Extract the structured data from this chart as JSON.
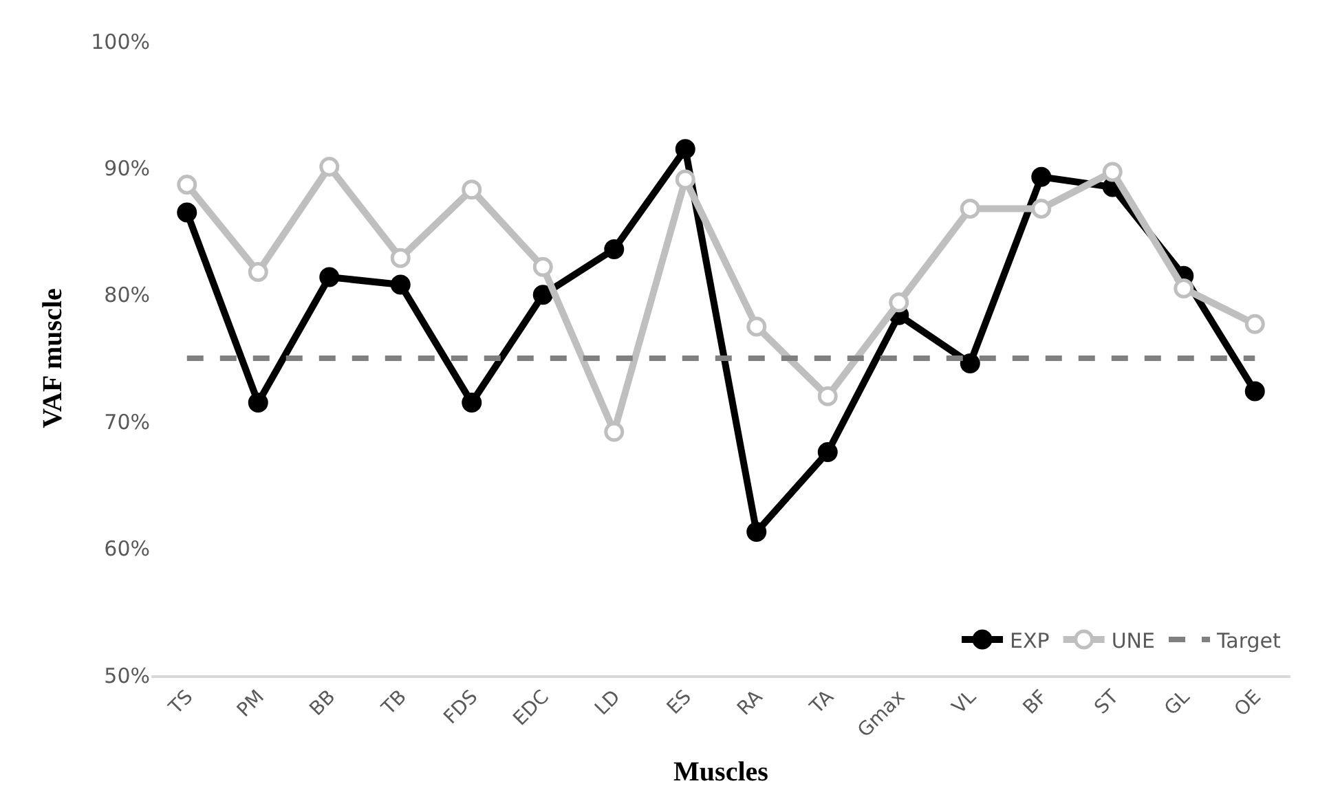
{
  "chart_data": {
    "type": "line",
    "xlabel": "Muscles",
    "ylabel": "VAF muscle",
    "categories": [
      "TS",
      "PM",
      "BB",
      "TB",
      "FDS",
      "EDC",
      "LD",
      "ES",
      "RA",
      "TA",
      "Gmax",
      "VL",
      "BF",
      "ST",
      "GL",
      "OE"
    ],
    "series": [
      {
        "name": "EXP",
        "color": "#000000",
        "marker": "circle",
        "values": [
          86.5,
          71.5,
          81.4,
          80.8,
          71.5,
          80.0,
          83.6,
          91.5,
          61.3,
          67.6,
          78.4,
          74.6,
          89.3,
          88.5,
          81.5,
          72.4
        ]
      },
      {
        "name": "UNE",
        "color": "#bfbfbf",
        "marker": "circle",
        "values": [
          88.7,
          81.8,
          90.1,
          82.9,
          88.3,
          82.2,
          69.2,
          89.1,
          77.5,
          72.0,
          79.4,
          86.8,
          86.8,
          89.7,
          80.5,
          77.7
        ]
      },
      {
        "name": "Target",
        "color": "#808080",
        "marker": "none",
        "line_style": "dashed",
        "values": [
          75,
          75,
          75,
          75,
          75,
          75,
          75,
          75,
          75,
          75,
          75,
          75,
          75,
          75,
          75,
          75
        ]
      }
    ],
    "ylim": [
      50,
      100
    ],
    "yticks": [
      {
        "value": 50,
        "label": "50%"
      },
      {
        "value": 60,
        "label": "60%"
      },
      {
        "value": 70,
        "label": "70%"
      },
      {
        "value": 80,
        "label": "80%"
      },
      {
        "value": 90,
        "label": "90%"
      },
      {
        "value": 100,
        "label": "100%"
      }
    ],
    "legend": "bottom right"
  }
}
